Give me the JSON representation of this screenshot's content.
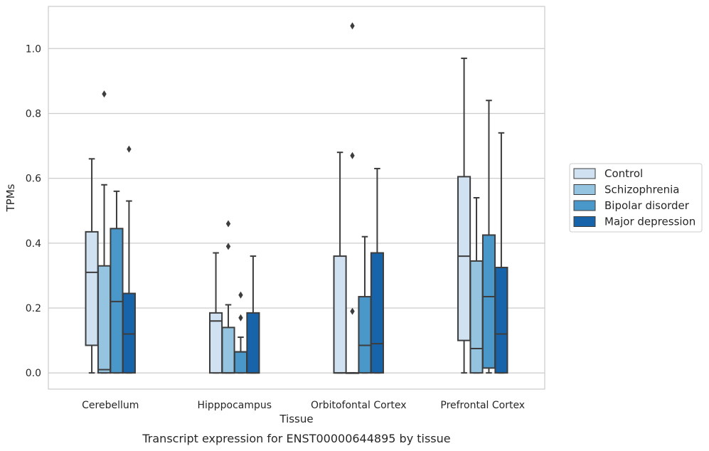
{
  "chart_data": {
    "type": "box",
    "xlabel": "Tissue",
    "ylabel": "TPMs",
    "caption": "Transcript expression for ENST00000644895 by tissue",
    "ylim": [
      -0.05,
      1.13
    ],
    "yticks": [
      0.0,
      0.2,
      0.4,
      0.6,
      0.8,
      1.0
    ],
    "ytick_labels": [
      "0.0",
      "0.2",
      "0.4",
      "0.6",
      "0.8",
      "1.0"
    ],
    "grid": "horizontal",
    "legend_position": "right",
    "categories": [
      "Cerebellum",
      "Hipppocampus",
      "Orbitofontal Cortex",
      "Prefrontal Cortex"
    ],
    "series": [
      {
        "name": "Control",
        "color": "#d0e1f2",
        "boxes": [
          {
            "whisker_low": 0.0,
            "q1": 0.085,
            "median": 0.31,
            "q3": 0.435,
            "whisker_high": 0.66,
            "outliers": []
          },
          {
            "whisker_low": 0.0,
            "q1": 0.0,
            "median": 0.16,
            "q3": 0.185,
            "whisker_high": 0.37,
            "outliers": []
          },
          {
            "whisker_low": 0.0,
            "q1": 0.0,
            "median": 0.0,
            "q3": 0.36,
            "whisker_high": 0.68,
            "outliers": []
          },
          {
            "whisker_low": 0.0,
            "q1": 0.1,
            "median": 0.36,
            "q3": 0.605,
            "whisker_high": 0.97,
            "outliers": []
          }
        ]
      },
      {
        "name": "Schizophrenia",
        "color": "#94c4df",
        "boxes": [
          {
            "whisker_low": 0.0,
            "q1": 0.0,
            "median": 0.01,
            "q3": 0.33,
            "whisker_high": 0.58,
            "outliers": [
              0.86
            ]
          },
          {
            "whisker_low": 0.0,
            "q1": 0.0,
            "median": 0.0,
            "q3": 0.14,
            "whisker_high": 0.21,
            "outliers": [
              0.39,
              0.46
            ]
          },
          {
            "whisker_low": 0.0,
            "q1": 0.0,
            "median": 0.0,
            "q3": 0.0,
            "whisker_high": 0.0,
            "outliers": [
              0.19,
              0.67,
              1.07
            ]
          },
          {
            "whisker_low": 0.0,
            "q1": 0.0,
            "median": 0.075,
            "q3": 0.345,
            "whisker_high": 0.54,
            "outliers": []
          }
        ]
      },
      {
        "name": "Bipolar disorder",
        "color": "#4a98c9",
        "boxes": [
          {
            "whisker_low": 0.0,
            "q1": 0.0,
            "median": 0.22,
            "q3": 0.445,
            "whisker_high": 0.56,
            "outliers": []
          },
          {
            "whisker_low": 0.0,
            "q1": 0.0,
            "median": 0.065,
            "q3": 0.065,
            "whisker_high": 0.11,
            "outliers": [
              0.17,
              0.24
            ]
          },
          {
            "whisker_low": 0.0,
            "q1": 0.0,
            "median": 0.085,
            "q3": 0.235,
            "whisker_high": 0.42,
            "outliers": []
          },
          {
            "whisker_low": 0.0,
            "q1": 0.015,
            "median": 0.235,
            "q3": 0.425,
            "whisker_high": 0.84,
            "outliers": []
          }
        ]
      },
      {
        "name": "Major depression",
        "color": "#1764ab",
        "boxes": [
          {
            "whisker_low": 0.0,
            "q1": 0.0,
            "median": 0.12,
            "q3": 0.245,
            "whisker_high": 0.53,
            "outliers": [
              0.69
            ]
          },
          {
            "whisker_low": 0.0,
            "q1": 0.0,
            "median": 0.0,
            "q3": 0.185,
            "whisker_high": 0.36,
            "outliers": []
          },
          {
            "whisker_low": 0.0,
            "q1": 0.0,
            "median": 0.09,
            "q3": 0.37,
            "whisker_high": 0.63,
            "outliers": []
          },
          {
            "whisker_low": 0.0,
            "q1": 0.0,
            "median": 0.12,
            "q3": 0.325,
            "whisker_high": 0.74,
            "outliers": []
          }
        ]
      }
    ]
  }
}
